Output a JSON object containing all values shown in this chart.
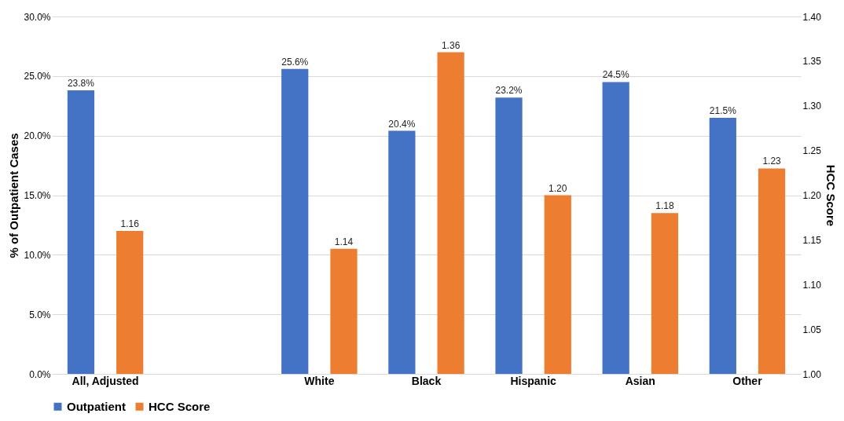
{
  "chart_data": {
    "type": "bar",
    "categories": [
      "All, Adjusted",
      null,
      "White",
      "Black",
      "Hispanic",
      "Asian",
      "Other"
    ],
    "ylabel": "% of Outpatient Cases",
    "y2label": "HCC Score",
    "ylim": [
      0,
      30
    ],
    "yticks": [
      {
        "value": 0,
        "label": "0.0%"
      },
      {
        "value": 5,
        "label": "5.0%"
      },
      {
        "value": 10,
        "label": "10.0%"
      },
      {
        "value": 15,
        "label": "15.0%"
      },
      {
        "value": 20,
        "label": "20.0%"
      },
      {
        "value": 25,
        "label": "25.0%"
      },
      {
        "value": 30,
        "label": "30.0%"
      }
    ],
    "y2lim": [
      1.0,
      1.4
    ],
    "y2ticks": [
      {
        "value": 1.0,
        "label": "1.00"
      },
      {
        "value": 1.05,
        "label": "1.05"
      },
      {
        "value": 1.1,
        "label": "1.10"
      },
      {
        "value": 1.15,
        "label": "1.15"
      },
      {
        "value": 1.2,
        "label": "1.20"
      },
      {
        "value": 1.25,
        "label": "1.25"
      },
      {
        "value": 1.3,
        "label": "1.30"
      },
      {
        "value": 1.35,
        "label": "1.35"
      },
      {
        "value": 1.4,
        "label": "1.40"
      }
    ],
    "series": [
      {
        "name": "Outpatient",
        "color": "#4472c4",
        "values": [
          23.8,
          null,
          25.6,
          20.4,
          23.2,
          24.5,
          21.5
        ],
        "value_labels": [
          "23.8%",
          null,
          "25.6%",
          "20.4%",
          "23.2%",
          "24.5%",
          "21.5%"
        ]
      },
      {
        "name": "HCC Score",
        "color": "#ed7d31",
        "axis": "y2",
        "values": [
          1.16,
          null,
          1.14,
          1.36,
          1.2,
          1.18,
          1.23
        ],
        "value_labels": [
          "1.16",
          null,
          "1.14",
          "1.36",
          "1.20",
          "1.18",
          "1.23"
        ]
      }
    ],
    "grid": "y",
    "legend": "bottom"
  }
}
